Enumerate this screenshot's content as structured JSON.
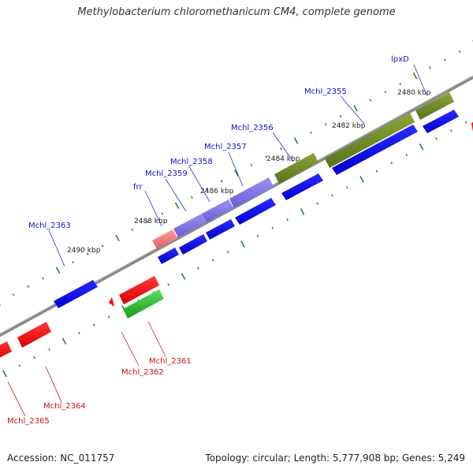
{
  "title": "Methylobacterium chloromethanicum CM4, complete genome",
  "footer": {
    "accession": "Accession: NC_011757",
    "summary": "Topology: circular; Length: 5,777,908 bp; Genes: 5,249"
  },
  "colors": {
    "forward_cds": "#0a00e6",
    "reverse_cds": "#ff0000",
    "rna_gene": "#6a8a1a",
    "other_forward": "#7b6ee6",
    "pseudogene": "#ee7777",
    "reverse_other": "#22bb22",
    "backbone": "#888888",
    "tick": "#2e7d32",
    "forward_label": "#0b16c9",
    "reverse_label": "#d01010"
  },
  "kbp_labels": [
    {
      "text": "2480 kbp"
    },
    {
      "text": "2482 kbp"
    },
    {
      "text": "2484 kbp"
    },
    {
      "text": "2486 kbp"
    },
    {
      "text": "2488 kbp"
    },
    {
      "text": "2490 kbp"
    }
  ],
  "forward_labels": [
    {
      "name": "lpxD"
    },
    {
      "name": "Mchl_2355"
    },
    {
      "name": "Mchl_2356"
    },
    {
      "name": "Mchl_2357"
    },
    {
      "name": "Mchl_2358"
    },
    {
      "name": "Mchl_2359"
    },
    {
      "name": "frr"
    },
    {
      "name": "Mchl_2363"
    }
  ],
  "reverse_labels": [
    {
      "name": "Mchl_2361"
    },
    {
      "name": "Mchl_2362"
    },
    {
      "name": "Mchl_2364"
    },
    {
      "name": "Mchl_2365"
    }
  ]
}
